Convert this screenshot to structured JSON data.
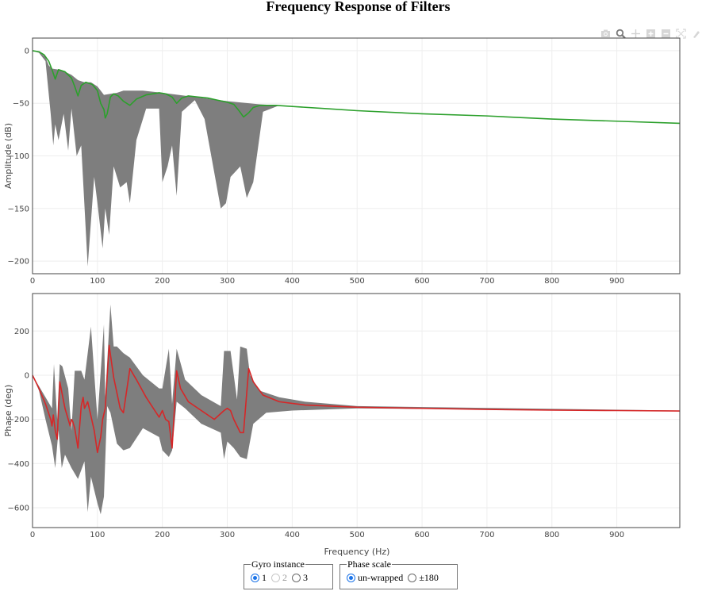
{
  "page": {
    "title": "Frequency Response of Filters"
  },
  "modebar": {
    "icons": [
      "camera-icon",
      "zoom-icon",
      "pan-icon",
      "zoom-in-icon",
      "zoom-out-icon",
      "autoscale-icon",
      "reset-axes-icon"
    ]
  },
  "controls": {
    "gyro": {
      "legend": "Gyro instance",
      "options": [
        {
          "label": "1",
          "checked": true,
          "disabled": false
        },
        {
          "label": "2",
          "checked": false,
          "disabled": true
        },
        {
          "label": "3",
          "checked": false,
          "disabled": false
        }
      ]
    },
    "phase_scale": {
      "legend": "Phase scale",
      "options": [
        {
          "label": "un-wrapped",
          "checked": true,
          "disabled": false
        },
        {
          "label": "±180",
          "checked": false,
          "disabled": false
        }
      ]
    }
  },
  "colors": {
    "amplitude_mean": "#2ca02c",
    "phase_mean": "#d62728",
    "envelope": "#777777",
    "grid": "#eeeeee",
    "axis": "#444444"
  },
  "chart_data": [
    {
      "type": "line",
      "title": "Frequency Response of Filters",
      "xlabel": "Frequency (Hz)",
      "ylabel": "Amplitude (dB)",
      "xlim": [
        0,
        997
      ],
      "ylim": [
        -212,
        12
      ],
      "xticks": [
        0,
        100,
        200,
        300,
        400,
        500,
        600,
        700,
        800,
        900
      ],
      "yticks": [
        0,
        -50,
        -100,
        -150,
        -200
      ],
      "grid": true,
      "legend": "none",
      "series": [
        {
          "name": "mean",
          "color": "#2ca02c",
          "x": [
            0,
            10,
            18,
            25,
            30,
            35,
            40,
            50,
            60,
            65,
            70,
            75,
            82,
            92,
            100,
            105,
            110,
            112,
            115,
            120,
            125,
            132,
            140,
            150,
            160,
            175,
            195,
            205,
            215,
            222,
            230,
            240,
            255,
            270,
            285,
            300,
            310,
            318,
            325,
            333,
            340,
            350,
            360,
            375,
            400,
            450,
            500,
            600,
            700,
            800,
            900,
            997
          ],
          "values": [
            0,
            -1,
            -4,
            -10,
            -18,
            -27,
            -18,
            -20,
            -26,
            -34,
            -43,
            -33,
            -30,
            -32,
            -38,
            -50,
            -56,
            -64,
            -60,
            -44,
            -41,
            -43,
            -48,
            -52,
            -46,
            -42,
            -40,
            -41,
            -44,
            -50,
            -45,
            -43,
            -44,
            -45,
            -47,
            -49,
            -51,
            -57,
            -63,
            -59,
            -54,
            -52,
            -52,
            -52,
            -53,
            -55,
            -57,
            -60,
            -62,
            -65,
            -67,
            -69
          ]
        },
        {
          "name": "envelope_upper",
          "color": "#777777",
          "x": [
            0,
            10,
            20,
            25,
            30,
            40,
            50,
            60,
            70,
            80,
            90,
            100,
            110,
            120,
            130,
            140,
            150,
            170,
            200,
            250,
            300,
            350,
            380,
            997
          ],
          "values": [
            0,
            -1,
            -6,
            -14,
            -17,
            -18,
            -20,
            -23,
            -28,
            -30,
            -30,
            -34,
            -42,
            -41,
            -40,
            -38,
            -38,
            -38,
            -40,
            -44,
            -48,
            -51,
            -52,
            -69
          ]
        },
        {
          "name": "envelope_lower",
          "color": "#777777",
          "x": [
            0,
            10,
            20,
            28,
            32,
            35,
            40,
            48,
            55,
            60,
            68,
            75,
            85,
            95,
            100,
            108,
            112,
            118,
            125,
            135,
            145,
            150,
            160,
            175,
            195,
            200,
            208,
            215,
            222,
            230,
            250,
            265,
            290,
            298,
            305,
            320,
            330,
            340,
            355,
            380,
            997
          ],
          "values": [
            0,
            -2,
            -10,
            -60,
            -90,
            -70,
            -85,
            -60,
            -95,
            -55,
            -100,
            -90,
            -205,
            -120,
            -145,
            -188,
            -150,
            -175,
            -110,
            -130,
            -125,
            -145,
            -85,
            -55,
            -55,
            -125,
            -110,
            -90,
            -138,
            -58,
            -47,
            -65,
            -150,
            -145,
            -120,
            -110,
            -140,
            -125,
            -58,
            -52,
            -69
          ]
        }
      ]
    },
    {
      "type": "line",
      "xlabel": "Frequency (Hz)",
      "ylabel": "Phase (deg)",
      "xlim": [
        0,
        997
      ],
      "ylim": [
        -690,
        370
      ],
      "xticks": [
        0,
        100,
        200,
        300,
        400,
        500,
        600,
        700,
        800,
        900
      ],
      "yticks": [
        200,
        0,
        -200,
        -400,
        -600
      ],
      "grid": true,
      "legend": "none",
      "series": [
        {
          "name": "mean",
          "color": "#d62728",
          "x": [
            0,
            10,
            20,
            28,
            30,
            32,
            35,
            38,
            42,
            50,
            58,
            60,
            62,
            65,
            70,
            75,
            78,
            80,
            85,
            95,
            100,
            105,
            108,
            112,
            118,
            125,
            135,
            140,
            150,
            160,
            175,
            195,
            200,
            205,
            210,
            215,
            222,
            228,
            240,
            260,
            280,
            295,
            300,
            305,
            310,
            320,
            325,
            333,
            340,
            355,
            380,
            420,
            500,
            600,
            700,
            800,
            900,
            997
          ],
          "values": [
            0,
            -60,
            -130,
            -200,
            -230,
            -180,
            -250,
            -290,
            -30,
            -150,
            -230,
            -200,
            -210,
            -240,
            -330,
            -140,
            -100,
            -150,
            -120,
            -250,
            -350,
            -280,
            -200,
            -150,
            135,
            -10,
            -150,
            -170,
            30,
            -20,
            -100,
            -190,
            -160,
            -200,
            -210,
            -330,
            20,
            -60,
            -120,
            -160,
            -200,
            -160,
            -150,
            -160,
            -200,
            -260,
            -260,
            30,
            -30,
            -90,
            -120,
            -135,
            -145,
            -150,
            -155,
            -158,
            -160,
            -162
          ]
        },
        {
          "name": "envelope_upper",
          "color": "#777777",
          "x": [
            0,
            20,
            30,
            33,
            38,
            42,
            46,
            55,
            60,
            65,
            75,
            80,
            90,
            100,
            110,
            112,
            120,
            125,
            130,
            140,
            150,
            170,
            195,
            200,
            210,
            215,
            222,
            235,
            260,
            290,
            295,
            305,
            315,
            320,
            330,
            335,
            350,
            380,
            420,
            500,
            997
          ],
          "values": [
            0,
            -100,
            -150,
            50,
            -200,
            50,
            40,
            -60,
            -250,
            20,
            20,
            -20,
            220,
            -200,
            230,
            -100,
            320,
            130,
            130,
            100,
            80,
            0,
            -60,
            -60,
            120,
            -130,
            120,
            -20,
            -90,
            -140,
            110,
            110,
            -110,
            130,
            120,
            0,
            -70,
            -100,
            -120,
            -140,
            -160
          ]
        },
        {
          "name": "envelope_lower",
          "color": "#777777",
          "x": [
            0,
            10,
            20,
            30,
            35,
            40,
            45,
            50,
            60,
            70,
            80,
            85,
            90,
            100,
            105,
            110,
            115,
            120,
            130,
            140,
            150,
            170,
            195,
            200,
            210,
            215,
            222,
            235,
            260,
            290,
            295,
            300,
            310,
            320,
            330,
            340,
            360,
            400,
            500,
            997
          ],
          "values": [
            0,
            -70,
            -200,
            -320,
            -420,
            -250,
            -420,
            -360,
            -420,
            -470,
            -390,
            -620,
            -460,
            -580,
            -630,
            -550,
            -140,
            -170,
            -310,
            -340,
            -330,
            -240,
            -280,
            -340,
            -370,
            -340,
            -120,
            -150,
            -220,
            -260,
            -380,
            -300,
            -330,
            -370,
            -380,
            -220,
            -170,
            -160,
            -150,
            -162
          ]
        }
      ]
    }
  ]
}
